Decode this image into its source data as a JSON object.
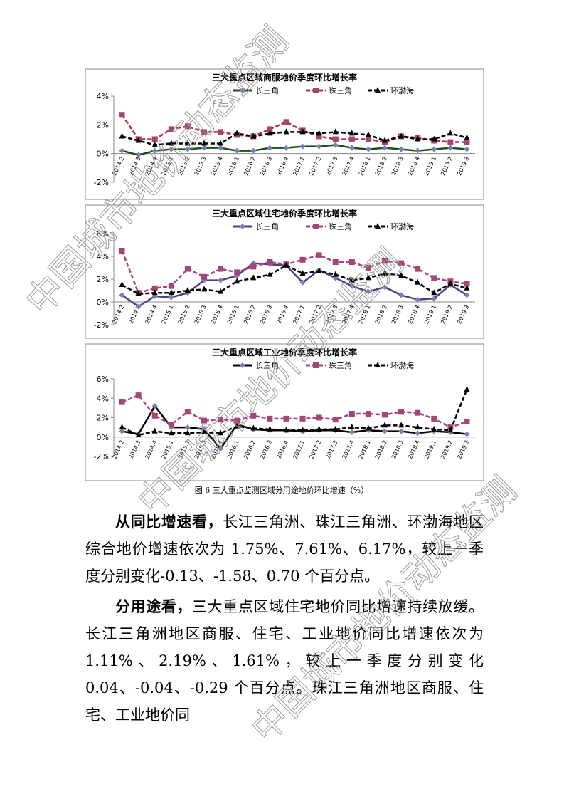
{
  "chart_data": [
    {
      "type": "line",
      "title": "三大重点区域商服地价季度环比增长率",
      "categories": [
        "2014.2",
        "2014.3",
        "2014.4",
        "2015.1",
        "2015.2",
        "2015.3",
        "2015.4",
        "2016.1",
        "2016.2",
        "2016.3",
        "2016.4",
        "2017.1",
        "2017.2",
        "2017.3",
        "2017.4",
        "2018.1",
        "2018.2",
        "2018.3",
        "2018.4",
        "2019.1",
        "2019.2",
        "2019.3"
      ],
      "ylim": [
        -2,
        4
      ],
      "yticks": [
        {
          "value": -2,
          "label": "-2%"
        },
        {
          "value": 0,
          "label": "0%"
        },
        {
          "value": 2,
          "label": "2%"
        },
        {
          "value": 4,
          "label": "4%"
        }
      ],
      "series": [
        {
          "name": "长三角",
          "color": "#1e4d1e",
          "marker_color": "#7a7fb3",
          "marker": "diamond",
          "dash": false,
          "values": [
            0.2,
            -0.1,
            0.2,
            0.3,
            0.3,
            0.4,
            0.4,
            0.2,
            0.2,
            0.4,
            0.4,
            0.5,
            0.5,
            0.6,
            0.4,
            0.3,
            0.4,
            0.3,
            0.2,
            0.3,
            0.4,
            0.3
          ]
        },
        {
          "name": "珠三角",
          "color": "#b03030",
          "marker_color": "#a4457a",
          "marker": "square",
          "dash": true,
          "values": [
            2.7,
            1.0,
            1.0,
            1.7,
            1.9,
            1.5,
            1.5,
            1.3,
            1.2,
            1.7,
            2.2,
            1.6,
            1.2,
            1.0,
            1.0,
            1.0,
            0.8,
            1.2,
            1.1,
            0.9,
            0.8,
            0.8
          ]
        },
        {
          "name": "环渤海",
          "color": "#000000",
          "marker_color": "#000000",
          "marker": "triangle",
          "dash": true,
          "values": [
            1.2,
            0.9,
            0.6,
            0.7,
            0.7,
            0.7,
            0.7,
            1.4,
            1.2,
            1.4,
            1.5,
            1.5,
            1.4,
            1.5,
            1.4,
            1.3,
            0.9,
            1.2,
            1.0,
            1.0,
            1.4,
            1.1
          ]
        }
      ]
    },
    {
      "type": "line",
      "title": "三大重点区域住宅地价季度环比增长率",
      "categories": [
        "2014.2",
        "2014.3",
        "2014.4",
        "2015.1",
        "2015.2",
        "2015.3",
        "2015.4",
        "2016.1",
        "2016.2",
        "2016.3",
        "2016.4",
        "2017.1",
        "2017.2",
        "2017.3",
        "2017.4",
        "2018.1",
        "2018.2",
        "2018.3",
        "2018.4",
        "2019.1",
        "2019.2",
        "2019.3"
      ],
      "ylim": [
        -2,
        6
      ],
      "yticks": [
        {
          "value": -2,
          "label": "-2%"
        },
        {
          "value": 0,
          "label": "0%"
        },
        {
          "value": 2,
          "label": "2%"
        },
        {
          "value": 4,
          "label": "4%"
        },
        {
          "value": 6,
          "label": "6%"
        }
      ],
      "series": [
        {
          "name": "长三角",
          "color": "#4b3f8a",
          "marker_color": "#7a7fb3",
          "marker": "diamond",
          "dash": false,
          "values": [
            0.6,
            -0.4,
            0.5,
            0.4,
            0.8,
            1.9,
            1.9,
            2.3,
            3.4,
            3.3,
            3.2,
            1.7,
            2.8,
            2.1,
            1.4,
            0.9,
            1.3,
            0.6,
            0.2,
            0.3,
            1.5,
            0.6
          ]
        },
        {
          "name": "珠三角",
          "color": "#a4457a",
          "marker_color": "#a4457a",
          "marker": "square",
          "dash": true,
          "values": [
            4.5,
            0.8,
            1.2,
            1.4,
            2.9,
            2.2,
            2.9,
            2.6,
            3.1,
            3.5,
            3.3,
            3.7,
            4.1,
            3.5,
            3.5,
            3.0,
            3.6,
            3.4,
            2.9,
            2.1,
            1.8,
            1.6
          ]
        },
        {
          "name": "环渤海",
          "color": "#000000",
          "marker_color": "#000000",
          "marker": "triangle",
          "dash": true,
          "values": [
            1.5,
            0.7,
            0.8,
            0.8,
            1.0,
            1.1,
            0.9,
            1.8,
            2.1,
            2.4,
            3.2,
            2.5,
            2.7,
            2.4,
            1.9,
            2.1,
            2.5,
            2.3,
            1.7,
            0.8,
            1.6,
            1.2
          ]
        }
      ]
    },
    {
      "type": "line",
      "title": "三大重点区域工业地价季度环比增长率",
      "categories": [
        "2014.2",
        "2014.3",
        "2014.4",
        "2015.1",
        "2015.2",
        "2015.3",
        "2015.4",
        "2016.1",
        "2016.2",
        "2016.3",
        "2016.4",
        "2017.1",
        "2017.2",
        "2017.3",
        "2017.4",
        "2018.1",
        "2018.2",
        "2018.3",
        "2018.4",
        "2019.1",
        "2019.2",
        "2019.3"
      ],
      "ylim": [
        -2,
        6
      ],
      "yticks": [
        {
          "value": -2,
          "label": "-2%"
        },
        {
          "value": 0,
          "label": "0%"
        },
        {
          "value": 2,
          "label": "2%"
        },
        {
          "value": 4,
          "label": "4%"
        },
        {
          "value": 6,
          "label": "6%"
        }
      ],
      "series": [
        {
          "name": "长三角",
          "color": "#000000",
          "marker_color": "#7a7fb3",
          "marker": "diamond",
          "dash": false,
          "values": [
            0.6,
            0.3,
            3.2,
            1.0,
            1.0,
            0.8,
            -1.2,
            1.3,
            0.8,
            0.7,
            0.7,
            0.6,
            0.7,
            0.7,
            0.5,
            0.7,
            0.6,
            0.6,
            0.4,
            0.6,
            0.5,
            0.3
          ]
        },
        {
          "name": "珠三角",
          "color": "#a4457a",
          "marker_color": "#a4457a",
          "marker": "square",
          "dash": true,
          "values": [
            3.6,
            4.3,
            2.2,
            1.3,
            2.6,
            1.7,
            1.8,
            1.7,
            2.2,
            1.9,
            1.9,
            1.9,
            2.0,
            1.8,
            2.4,
            2.4,
            2.3,
            2.6,
            2.5,
            1.9,
            1.0,
            1.6
          ]
        },
        {
          "name": "环渤海",
          "color": "#000000",
          "marker_color": "#000000",
          "marker": "triangle",
          "dash": true,
          "values": [
            1.0,
            0.2,
            0.6,
            0.4,
            0.4,
            0.5,
            0.4,
            1.1,
            0.9,
            0.8,
            0.7,
            0.7,
            0.8,
            0.8,
            1.0,
            0.9,
            1.2,
            1.2,
            1.0,
            0.8,
            0.7,
            4.9
          ]
        }
      ]
    }
  ],
  "caption": "图 6  三大重点监测区域分用途地价环比增速（%）",
  "paragraphs": [
    {
      "lead": "从同比增速看，",
      "text": "长江三角洲、珠江三角洲、环渤海地区综合地价增速依次为 1.75%、7.61%、6.17%，较上一季度分别变化-0.13、-1.58、0.70 个百分点。"
    },
    {
      "lead": "分用途看，",
      "text": "三大重点区域住宅地价同比增速持续放缓。长江三角洲地区商服、住宅、工业地价同比增速依次为 1.11%、2.19%、1.61%，较上一季度分别变化 0.04、-0.04、-0.29 个百分点。珠江三角洲地区商服、住宅、工业地价同"
    }
  ],
  "watermark": "中国城市地价动态监测"
}
